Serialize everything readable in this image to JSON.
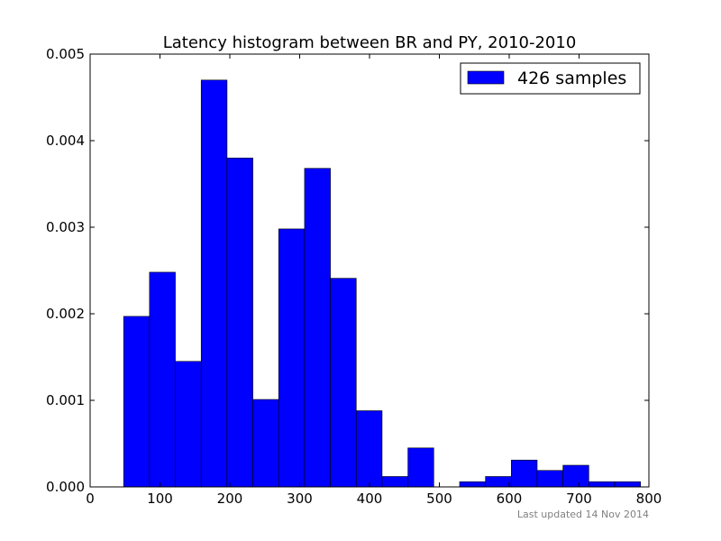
{
  "chart_data": {
    "type": "bar",
    "title": "Latency histogram between BR and PY, 2010-2010",
    "xlabel": "",
    "ylabel": "",
    "xlim": [
      0,
      800
    ],
    "ylim": [
      0,
      0.005
    ],
    "xticks": [
      "0",
      "100",
      "200",
      "300",
      "400",
      "500",
      "600",
      "700",
      "800"
    ],
    "yticks": [
      "0.000",
      "0.001",
      "0.002",
      "0.003",
      "0.004",
      "0.005"
    ],
    "bin_width": 37,
    "grid": false,
    "legend_position": "top-right",
    "series": [
      {
        "name": "426 samples",
        "color": "#0000ff",
        "bins": [
          {
            "x0": 48,
            "value": 0.00197
          },
          {
            "x0": 85,
            "value": 0.00248
          },
          {
            "x0": 122,
            "value": 0.00145
          },
          {
            "x0": 159,
            "value": 0.0047
          },
          {
            "x0": 196,
            "value": 0.0038
          },
          {
            "x0": 233,
            "value": 0.00101
          },
          {
            "x0": 270,
            "value": 0.00298
          },
          {
            "x0": 307,
            "value": 0.00368
          },
          {
            "x0": 344,
            "value": 0.00241
          },
          {
            "x0": 381,
            "value": 0.00088
          },
          {
            "x0": 418,
            "value": 0.00012
          },
          {
            "x0": 455,
            "value": 0.00045
          },
          {
            "x0": 492,
            "value": 0.0
          },
          {
            "x0": 529,
            "value": 6e-05
          },
          {
            "x0": 566,
            "value": 0.00012
          },
          {
            "x0": 603,
            "value": 0.00031
          },
          {
            "x0": 640,
            "value": 0.00019
          },
          {
            "x0": 677,
            "value": 0.00025
          },
          {
            "x0": 714,
            "value": 6e-05
          },
          {
            "x0": 751,
            "value": 6e-05
          }
        ]
      }
    ],
    "footnote": "Last updated 14 Nov 2014"
  }
}
